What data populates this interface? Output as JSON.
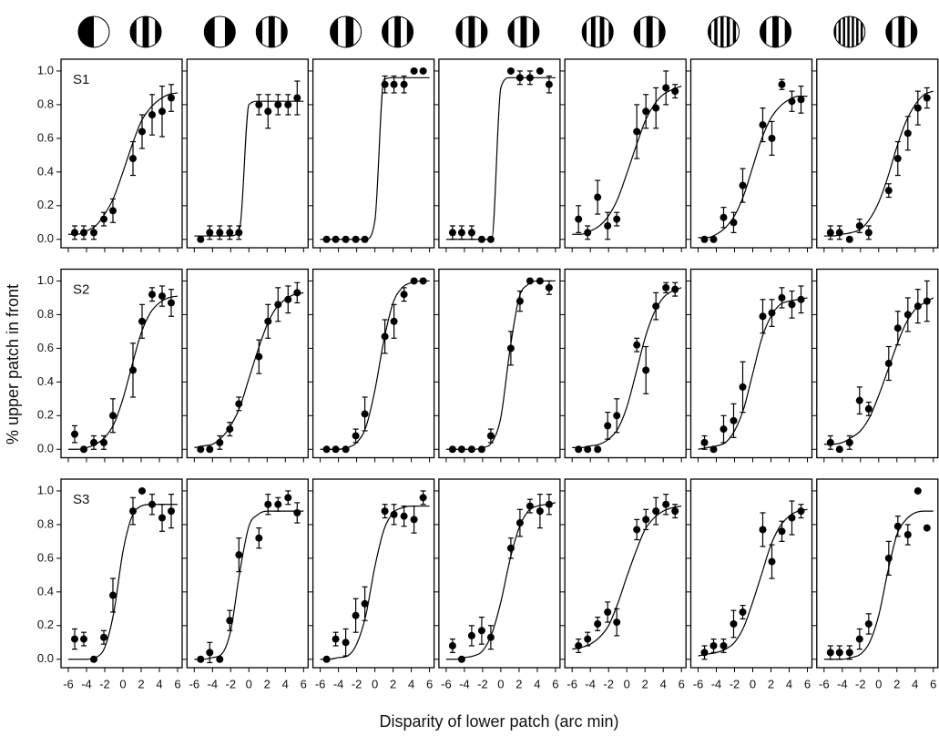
{
  "chart_data": {
    "type": "scatter",
    "xlabel": "Disparity of lower patch (arc min)",
    "ylabel": "% upper patch in front",
    "xlim": [
      -6.8,
      6.5
    ],
    "ylim": [
      -0.05,
      1.07
    ],
    "xticks": [
      -6,
      -4,
      -2,
      0,
      2,
      4,
      6
    ],
    "yticks": [
      {
        "value": 0,
        "label": "0.0"
      },
      0.2,
      0.4,
      0.6,
      0.8,
      {
        "value": 1,
        "label": "1.0"
      }
    ],
    "x": [
      -5.3,
      -4.3,
      -3.2,
      -2.1,
      -1.1,
      1.1,
      2.1,
      3.2,
      4.3,
      5.3
    ],
    "fit_x": [
      -6,
      -5,
      -4,
      -3,
      -2,
      -1,
      0,
      1,
      2,
      3,
      4,
      5,
      6
    ],
    "panels": [
      {
        "label": "S1",
        "values": [
          0.04,
          0.04,
          0.04,
          0.12,
          0.17,
          0.48,
          0.64,
          0.74,
          0.76,
          0.84
        ],
        "errors": [
          0.04,
          0.04,
          0.04,
          0.04,
          0.07,
          0.1,
          0.1,
          0.12,
          0.15,
          0.08
        ],
        "fit": [
          0.03,
          0.03,
          0.05,
          0.08,
          0.15,
          0.25,
          0.4,
          0.56,
          0.7,
          0.78,
          0.83,
          0.86,
          0.87
        ]
      },
      {
        "values": [
          0,
          0.04,
          0.04,
          0.04,
          0.04,
          0.8,
          0.76,
          0.8,
          0.8,
          0.84
        ],
        "errors": [
          null,
          0.04,
          0.04,
          0.04,
          0.04,
          0.06,
          0.1,
          0.06,
          0.06,
          0.1
        ],
        "fit": [
          0.02,
          0.02,
          0.02,
          0.02,
          0.02,
          0.07,
          0.8,
          0.82,
          0.82,
          0.82,
          0.82,
          0.82,
          0.82
        ]
      },
      {
        "values": [
          0,
          0,
          0,
          0,
          0,
          0.92,
          0.92,
          0.92,
          1.0,
          1.0
        ],
        "errors": [
          null,
          null,
          null,
          null,
          null,
          0.05,
          0.05,
          0.05,
          null,
          null
        ],
        "fit": [
          0,
          0,
          0,
          0,
          0,
          0,
          0.11,
          0.95,
          0.96,
          0.96,
          0.96,
          0.96,
          0.96
        ]
      },
      {
        "values": [
          0.04,
          0.04,
          0.04,
          0,
          0,
          1.0,
          0.96,
          0.96,
          1.0,
          0.92
        ],
        "errors": [
          0.04,
          0.04,
          0.04,
          null,
          null,
          null,
          0.04,
          0.04,
          null,
          0.05
        ],
        "fit": [
          0,
          0,
          0,
          0,
          0,
          0,
          0.9,
          0.96,
          0.96,
          0.96,
          0.96,
          0.96,
          0.96
        ]
      },
      {
        "values": [
          0.12,
          0.04,
          0.25,
          0.08,
          0.12,
          0.64,
          0.76,
          0.78,
          0.9,
          0.88
        ],
        "errors": [
          0.08,
          0.04,
          0.1,
          0.08,
          0.04,
          0.16,
          0.1,
          0.12,
          0.1,
          0.04
        ],
        "fit": [
          0.03,
          0.03,
          0.05,
          0.08,
          0.14,
          0.24,
          0.39,
          0.55,
          0.7,
          0.8,
          0.86,
          0.89,
          0.91
        ]
      },
      {
        "values": [
          0,
          0,
          0.13,
          0.1,
          0.32,
          0.68,
          0.6,
          0.92,
          0.82,
          0.83
        ],
        "errors": [
          null,
          null,
          0.06,
          0.06,
          0.1,
          0.1,
          0.1,
          0.03,
          0.06,
          0.08
        ],
        "fit": [
          0.01,
          0.01,
          0.03,
          0.07,
          0.14,
          0.26,
          0.43,
          0.6,
          0.72,
          0.79,
          0.83,
          0.85,
          0.85
        ]
      },
      {
        "values": [
          0.04,
          0.04,
          0,
          0.08,
          0.04,
          0.29,
          0.48,
          0.63,
          0.78,
          0.84
        ],
        "errors": [
          0.04,
          0.04,
          null,
          0.04,
          0.04,
          0.04,
          0.1,
          0.1,
          0.1,
          0.06
        ],
        "fit": [
          0.02,
          0.02,
          0.03,
          0.04,
          0.06,
          0.12,
          0.22,
          0.37,
          0.55,
          0.7,
          0.8,
          0.86,
          0.88
        ]
      },
      {
        "label": "S2",
        "values": [
          0.09,
          0,
          0.04,
          0.04,
          0.2,
          0.47,
          0.76,
          0.92,
          0.91,
          0.87
        ],
        "errors": [
          0.05,
          null,
          0.04,
          0.04,
          0.1,
          0.16,
          0.1,
          0.04,
          0.06,
          0.08
        ],
        "fit": [
          0,
          0,
          0.01,
          0.03,
          0.07,
          0.15,
          0.3,
          0.5,
          0.69,
          0.81,
          0.87,
          0.9,
          0.91
        ]
      },
      {
        "values": [
          0,
          0,
          0.04,
          0.12,
          0.27,
          0.55,
          0.76,
          0.86,
          0.89,
          0.93
        ],
        "errors": [
          null,
          null,
          0.04,
          0.04,
          0.04,
          0.1,
          0.1,
          0.1,
          0.08,
          0.06
        ],
        "fit": [
          0.01,
          0.02,
          0.03,
          0.07,
          0.14,
          0.25,
          0.42,
          0.59,
          0.74,
          0.84,
          0.89,
          0.92,
          0.93
        ]
      },
      {
        "values": [
          0,
          0,
          0,
          0.08,
          0.21,
          0.67,
          0.76,
          0.92,
          1.0,
          1.0
        ],
        "errors": [
          null,
          null,
          null,
          0.04,
          0.1,
          0.1,
          0.1,
          0.04,
          null,
          null
        ],
        "fit": [
          0,
          0,
          0,
          0.01,
          0.04,
          0.13,
          0.35,
          0.65,
          0.87,
          0.96,
          0.99,
          1,
          1
        ]
      },
      {
        "values": [
          0,
          0,
          0,
          0,
          0.08,
          0.6,
          0.88,
          1.0,
          1.0,
          0.96
        ],
        "errors": [
          null,
          null,
          null,
          null,
          0.04,
          0.1,
          0.06,
          null,
          null,
          0.04
        ],
        "fit": [
          0,
          0,
          0,
          0,
          0.01,
          0.04,
          0.19,
          0.59,
          0.9,
          0.98,
          1,
          1,
          1
        ]
      },
      {
        "values": [
          0,
          0,
          0,
          0.14,
          0.2,
          0.62,
          0.47,
          0.85,
          0.96,
          0.95
        ],
        "errors": [
          null,
          null,
          null,
          0.08,
          0.1,
          0.04,
          0.14,
          0.08,
          0.03,
          0.04
        ],
        "fit": [
          0.01,
          0.01,
          0.02,
          0.03,
          0.06,
          0.12,
          0.25,
          0.45,
          0.66,
          0.81,
          0.9,
          0.94,
          0.96
        ]
      },
      {
        "values": [
          0.04,
          0,
          0.12,
          0.17,
          0.37,
          0.79,
          0.81,
          0.9,
          0.86,
          0.89
        ],
        "errors": [
          0.04,
          null,
          0.08,
          0.1,
          0.15,
          0.1,
          0.08,
          0.06,
          0.08,
          0.08
        ],
        "fit": [
          0,
          0.01,
          0.02,
          0.04,
          0.11,
          0.24,
          0.45,
          0.66,
          0.79,
          0.86,
          0.88,
          0.89,
          0.9
        ]
      },
      {
        "values": [
          0.04,
          0,
          0.04,
          0.29,
          0.24,
          0.51,
          0.72,
          0.8,
          0.85,
          0.88
        ],
        "errors": [
          0.04,
          null,
          0.04,
          0.08,
          0.04,
          0.1,
          0.1,
          0.1,
          0.1,
          0.12
        ],
        "fit": [
          0.03,
          0.03,
          0.04,
          0.07,
          0.11,
          0.19,
          0.32,
          0.47,
          0.62,
          0.75,
          0.83,
          0.87,
          0.9
        ]
      },
      {
        "label": "S3",
        "values": [
          0.12,
          0.12,
          0,
          0.13,
          0.38,
          0.88,
          1.0,
          0.92,
          0.84,
          0.88
        ],
        "errors": [
          0.06,
          0.04,
          null,
          0.04,
          0.1,
          0.08,
          null,
          0.06,
          0.08,
          0.1
        ],
        "fit": [
          0,
          0,
          0,
          0.01,
          0.07,
          0.28,
          0.64,
          0.85,
          0.91,
          0.92,
          0.92,
          0.92,
          0.92
        ]
      },
      {
        "values": [
          0,
          0.04,
          0,
          0.23,
          0.62,
          0.72,
          0.92,
          0.92,
          0.96,
          0.87
        ],
        "errors": [
          null,
          0.06,
          null,
          0.06,
          0.1,
          0.06,
          0.06,
          0.04,
          0.04,
          0.06
        ],
        "fit": [
          0,
          0,
          0.01,
          0.03,
          0.17,
          0.52,
          0.79,
          0.86,
          0.88,
          0.88,
          0.88,
          0.88,
          0.88
        ]
      },
      {
        "values": [
          0,
          0.12,
          0.1,
          0.26,
          0.33,
          0.88,
          0.86,
          0.85,
          0.83,
          0.96
        ],
        "errors": [
          null,
          0.04,
          0.08,
          0.1,
          0.1,
          0.04,
          0.06,
          0.06,
          0.08,
          0.04
        ],
        "fit": [
          0,
          0,
          0.01,
          0.02,
          0.09,
          0.26,
          0.55,
          0.77,
          0.87,
          0.9,
          0.91,
          0.91,
          0.91
        ]
      },
      {
        "values": [
          0.08,
          0,
          0.14,
          0.17,
          0.13,
          0.66,
          0.81,
          0.91,
          0.88,
          0.92
        ],
        "errors": [
          0.04,
          null,
          0.06,
          0.08,
          0.07,
          0.06,
          0.08,
          0.04,
          0.1,
          0.06
        ],
        "fit": [
          0,
          0,
          0.01,
          0.02,
          0.05,
          0.15,
          0.34,
          0.59,
          0.78,
          0.88,
          0.91,
          0.92,
          0.93
        ]
      },
      {
        "values": [
          0.08,
          0.12,
          0.21,
          0.28,
          0.22,
          0.77,
          0.83,
          0.88,
          0.92,
          0.88
        ],
        "errors": [
          0.04,
          0.04,
          0.04,
          0.06,
          0.08,
          0.06,
          0.06,
          0.08,
          0.06,
          0.04
        ],
        "fit": [
          0.06,
          0.07,
          0.09,
          0.13,
          0.2,
          0.33,
          0.49,
          0.64,
          0.77,
          0.84,
          0.88,
          0.9,
          0.91
        ]
      },
      {
        "values": [
          0.04,
          0.08,
          0.08,
          0.21,
          0.28,
          0.77,
          0.58,
          0.76,
          0.84,
          0.88
        ],
        "errors": [
          0.04,
          0.04,
          0.04,
          0.08,
          0.04,
          0.1,
          0.1,
          0.06,
          0.1,
          0.04
        ],
        "fit": [
          0.02,
          0.03,
          0.04,
          0.06,
          0.1,
          0.19,
          0.34,
          0.51,
          0.68,
          0.79,
          0.85,
          0.88,
          0.89
        ]
      },
      {
        "values": [
          0.04,
          0.04,
          0.04,
          0.12,
          0.21,
          0.6,
          0.79,
          0.74,
          1.0,
          0.78
        ],
        "errors": [
          0.04,
          0.04,
          0.04,
          0.06,
          0.06,
          0.1,
          0.06,
          0.06,
          null,
          null
        ],
        "fit": [
          0,
          0,
          0,
          0.01,
          0.03,
          0.1,
          0.26,
          0.52,
          0.74,
          0.83,
          0.87,
          0.88,
          0.88
        ]
      }
    ]
  }
}
